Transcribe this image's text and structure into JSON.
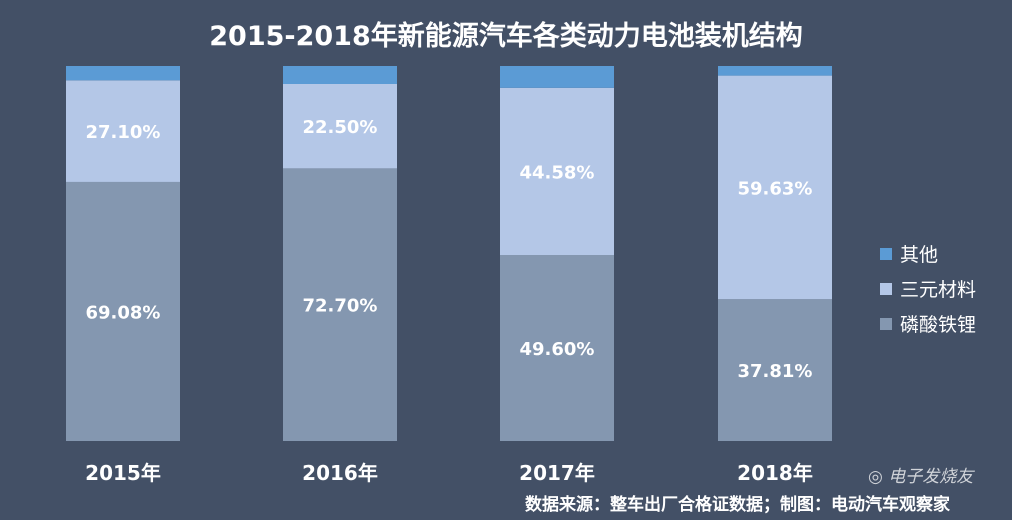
{
  "chart_data": {
    "type": "bar",
    "stacked": true,
    "title": "2015-2018年新能源汽车各类动力电池装机结构",
    "categories": [
      "2015年",
      "2016年",
      "2017年",
      "2018年"
    ],
    "ylim": [
      0,
      100
    ],
    "grid": false,
    "legend_position": "right",
    "series": [
      {
        "name": "磷酸铁锂",
        "color": "#8497b0",
        "values": [
          69.08,
          72.7,
          49.6,
          37.81
        ],
        "labels": [
          "69.08%",
          "72.70%",
          "49.60%",
          "37.81%"
        ]
      },
      {
        "name": "三元材料",
        "color": "#b4c7e7",
        "values": [
          27.1,
          22.5,
          44.58,
          59.63
        ],
        "labels": [
          "27.10%",
          "22.50%",
          "44.58%",
          "59.63%"
        ]
      },
      {
        "name": "其他",
        "color": "#5b9bd5",
        "values": [
          3.82,
          4.8,
          5.82,
          2.56
        ]
      }
    ],
    "legend_order": [
      "其他",
      "三元材料",
      "磷酸铁锂"
    ],
    "source": "数据来源：整车出厂合格证数据；制图：电动汽车观察家"
  },
  "watermark": "电子发烧友"
}
